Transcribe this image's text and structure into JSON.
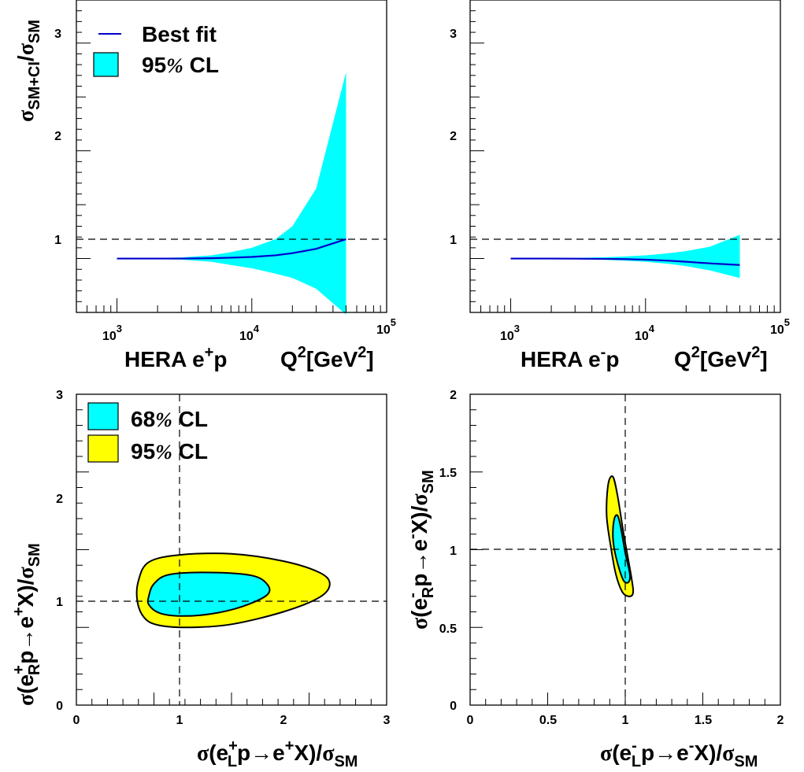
{
  "colors": {
    "band": "#00ffff",
    "outer": "#ffff00",
    "fit": "#0000cc",
    "frame": "#000000"
  },
  "chart_data": [
    {
      "type": "area",
      "panel": "top-left",
      "xscale": "log",
      "xlim": [
        500,
        100000
      ],
      "ylim": [
        0.5,
        3.4
      ],
      "yticks": [
        "1",
        "2",
        "3"
      ],
      "xticks": [
        "10",
        "10",
        "10"
      ],
      "xtick_exponents": [
        "3",
        "4",
        "5"
      ],
      "ylabel": {
        "sigma": "σ",
        "sub": "SM+CI",
        "slash": "/",
        "sigma2": "σ",
        "sub2": "SM"
      },
      "xlabel": {
        "process": "HERA e",
        "sup": "+",
        "p": "p",
        "q": "Q",
        "q_sup": "2",
        "unit": "[GeV",
        "unit_sup": "2",
        "unit_close": "]"
      },
      "legend": {
        "fit": "Best fit",
        "band_num": "95",
        "band_pct": "%",
        "band_cl": " CL"
      },
      "x": [
        1000,
        2000,
        3000,
        5000,
        7000,
        10000,
        15000,
        20000,
        30000,
        50000
      ],
      "best_fit": [
        1.0,
        1.0,
        1.0,
        1.003,
        1.008,
        1.015,
        1.03,
        1.05,
        1.09,
        1.18
      ],
      "band_upper": [
        1.0,
        1.005,
        1.01,
        1.03,
        1.06,
        1.1,
        1.18,
        1.3,
        1.65,
        2.73
      ],
      "band_lower": [
        1.0,
        0.995,
        0.99,
        0.97,
        0.94,
        0.91,
        0.86,
        0.82,
        0.72,
        0.48
      ],
      "reference_line": 1
    },
    {
      "type": "area",
      "panel": "top-right",
      "xscale": "log",
      "xlim": [
        500,
        100000
      ],
      "ylim": [
        0.5,
        3.4
      ],
      "yticks": [
        "1",
        "2",
        "3"
      ],
      "xticks": [
        "10",
        "10",
        "10"
      ],
      "xtick_exponents": [
        "3",
        "4",
        "5"
      ],
      "xlabel": {
        "process": "HERA e",
        "sup": "-",
        "p": "p",
        "q": "Q",
        "q_sup": "2",
        "unit": "[GeV",
        "unit_sup": "2",
        "unit_close": "]"
      },
      "x": [
        1000,
        2000,
        3000,
        5000,
        7000,
        10000,
        15000,
        20000,
        30000,
        50000
      ],
      "best_fit": [
        1.0,
        1.0,
        0.999,
        0.997,
        0.995,
        0.99,
        0.98,
        0.97,
        0.955,
        0.94
      ],
      "band_upper": [
        1.0,
        1.003,
        1.006,
        1.012,
        1.02,
        1.03,
        1.05,
        1.07,
        1.11,
        1.22
      ],
      "band_lower": [
        1.0,
        0.997,
        0.994,
        0.988,
        0.98,
        0.97,
        0.95,
        0.93,
        0.89,
        0.82
      ],
      "reference_line": 1
    },
    {
      "type": "contour",
      "panel": "bottom-left",
      "xlim": [
        0,
        3
      ],
      "ylim": [
        0,
        3
      ],
      "xticks": [
        "0",
        "1",
        "2",
        "3"
      ],
      "yticks": [
        "0",
        "1",
        "2",
        "3"
      ],
      "xlabel": {
        "sigma": "σ",
        "open": "(e",
        "sup": "+",
        "sub": "L",
        "rest": "p→e",
        "sup2": "+",
        "close": "X)/",
        "sigma2": "σ",
        "sub2": "SM"
      },
      "ylabel": {
        "sigma": "σ",
        "open": "(e",
        "sup": "+",
        "sub": "R",
        "rest": "p→e",
        "sup2": "+",
        "close": "X)/",
        "sigma2": "σ",
        "sub2": "SM"
      },
      "legend": {
        "inner_num": "68",
        "outer_num": "95",
        "pct": "%",
        "cl": " CL"
      },
      "cl68": [
        [
          0.7,
          0.97
        ],
        [
          0.8,
          0.89
        ],
        [
          1.0,
          0.86
        ],
        [
          1.3,
          0.88
        ],
        [
          1.6,
          0.95
        ],
        [
          1.84,
          1.06
        ],
        [
          1.85,
          1.16
        ],
        [
          1.7,
          1.25
        ],
        [
          1.3,
          1.28
        ],
        [
          0.9,
          1.26
        ],
        [
          0.75,
          1.17
        ],
        [
          0.7,
          1.05
        ]
      ],
      "cl95": [
        [
          0.59,
          1.0
        ],
        [
          0.66,
          0.84
        ],
        [
          0.8,
          0.77
        ],
        [
          1.1,
          0.75
        ],
        [
          1.5,
          0.78
        ],
        [
          2.0,
          0.9
        ],
        [
          2.35,
          1.04
        ],
        [
          2.45,
          1.17
        ],
        [
          2.35,
          1.28
        ],
        [
          2.0,
          1.39
        ],
        [
          1.5,
          1.46
        ],
        [
          1.0,
          1.45
        ],
        [
          0.7,
          1.38
        ],
        [
          0.6,
          1.2
        ]
      ],
      "crosshair": [
        1,
        1
      ]
    },
    {
      "type": "contour",
      "panel": "bottom-right",
      "xlim": [
        0,
        2
      ],
      "ylim": [
        0,
        2
      ],
      "xticks": [
        "0",
        "0.5",
        "1",
        "1.5",
        "2"
      ],
      "yticks": [
        "0",
        "0.5",
        "1",
        "1.5",
        "2"
      ],
      "xlabel": {
        "sigma": "σ",
        "open": "(e",
        "sup": "-",
        "sub": "L",
        "rest": "p→e",
        "sup2": "-",
        "close": "X)/",
        "sigma2": "σ",
        "sub2": "SM"
      },
      "ylabel": {
        "sigma": "σ",
        "open": "(e",
        "sup": "-",
        "sub": "R",
        "rest": "p→e",
        "sup2": "-",
        "close": "X)/",
        "sigma2": "σ",
        "sub2": "SM"
      },
      "cl68": [
        [
          0.93,
          1.2
        ],
        [
          0.95,
          1.22
        ],
        [
          0.97,
          1.15
        ],
        [
          1.0,
          0.98
        ],
        [
          1.03,
          0.84
        ],
        [
          1.02,
          0.79
        ],
        [
          0.99,
          0.8
        ],
        [
          0.96,
          0.88
        ],
        [
          0.93,
          1.0
        ],
        [
          0.92,
          1.1
        ]
      ],
      "cl95": [
        [
          0.89,
          1.42
        ],
        [
          0.92,
          1.47
        ],
        [
          0.95,
          1.35
        ],
        [
          0.99,
          1.1
        ],
        [
          1.04,
          0.82
        ],
        [
          1.05,
          0.72
        ],
        [
          1.02,
          0.7
        ],
        [
          0.98,
          0.73
        ],
        [
          0.94,
          0.84
        ],
        [
          0.91,
          1.0
        ],
        [
          0.88,
          1.22
        ]
      ],
      "crosshair": [
        1,
        1
      ]
    }
  ]
}
